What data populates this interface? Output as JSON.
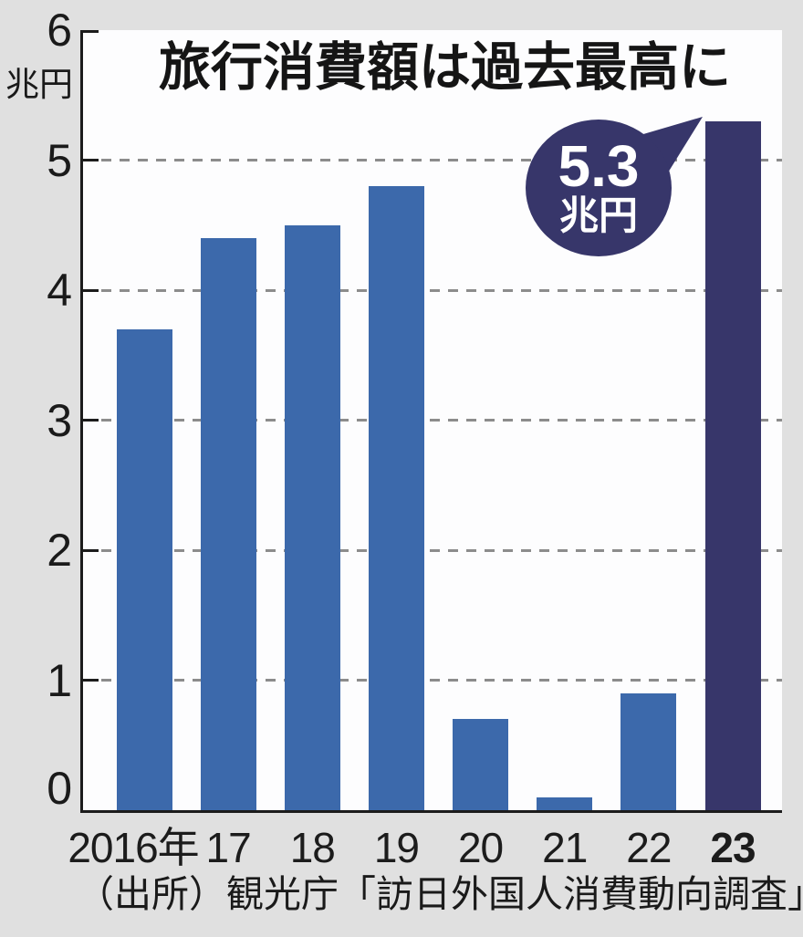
{
  "chart_data": {
    "type": "bar",
    "title": "旅行消費額は過去最高に",
    "y_unit_label": "兆円",
    "categories": [
      "2016年",
      "17",
      "18",
      "19",
      "20",
      "21",
      "22",
      "23"
    ],
    "values": [
      3.7,
      4.4,
      4.5,
      4.8,
      0.7,
      0.1,
      0.9,
      5.3
    ],
    "ylim": [
      0,
      6
    ],
    "yticks": [
      0,
      1,
      2,
      3,
      4,
      5,
      6
    ],
    "grid": "horizontal dashed lines at 1-5",
    "legend": "none",
    "highlight_index": 7,
    "annotation": {
      "line1": "5.3",
      "line2": "兆円",
      "points_to": "23"
    },
    "colors": {
      "bar": "#3c69ab",
      "highlight": "#37366a",
      "background": "#e0e0e0",
      "plot_background": "#fdfdfe",
      "grid": "#8c8c8c",
      "axis": "#1c1c1c"
    }
  },
  "source": "（出所）観光庁「訪日外国人消費動向調査」"
}
